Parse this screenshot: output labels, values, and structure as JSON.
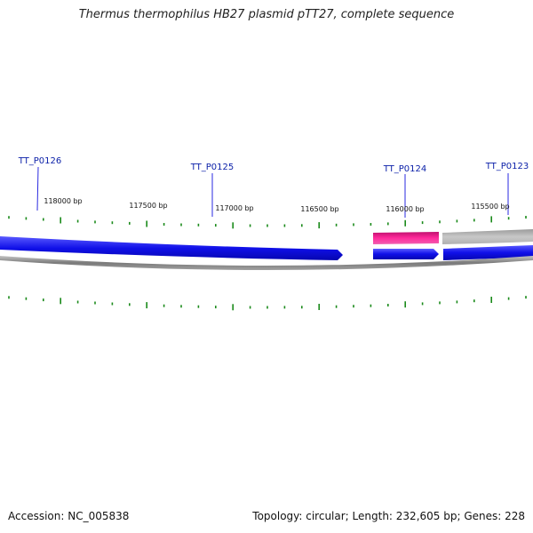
{
  "title": "Thermus thermophilus HB27 plasmid pTT27, complete sequence",
  "gene_labels": [
    {
      "name": "TT_P0126"
    },
    {
      "name": "TT_P0125"
    },
    {
      "name": "TT_P0124"
    },
    {
      "name": "TT_P0123"
    }
  ],
  "bp_labels": [
    {
      "text": "118000 bp"
    },
    {
      "text": "117500 bp"
    },
    {
      "text": "117000 bp"
    },
    {
      "text": "116500 bp"
    },
    {
      "text": "116000 bp"
    },
    {
      "text": "115500 bp"
    }
  ],
  "footer": {
    "accession": "Accession: NC_005838",
    "stats": "Topology: circular; Length: 232,605 bp; Genes: 228"
  },
  "colors": {
    "forward_gene": "#1010e8",
    "highlight_gene": "#e8148c",
    "grey_gene": "#b8b8b8",
    "backbone": "#8c8c8c",
    "tick": "#1a8a1a",
    "label_line": "#2a2ae0"
  }
}
